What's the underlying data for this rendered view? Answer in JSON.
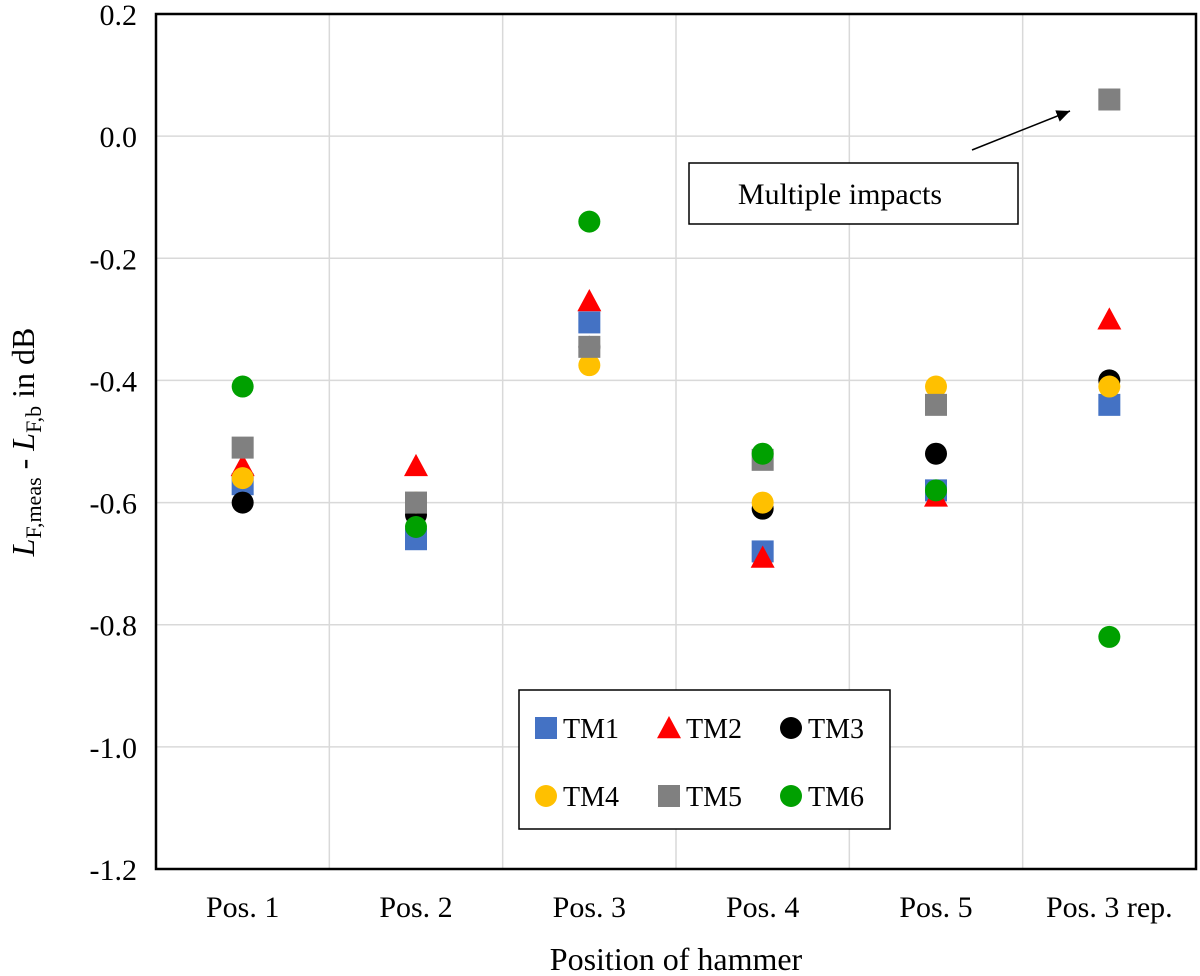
{
  "chart_data": {
    "type": "scatter",
    "title": "",
    "xlabel": "Position of hammer",
    "ylabel": {
      "L1": "L",
      "s1": "F,meas",
      "sep": " - ",
      "L2": "L",
      "s2": "F,b",
      "tail": " in dB"
    },
    "categories": [
      "Pos. 1",
      "Pos. 2",
      "Pos. 3",
      "Pos. 4",
      "Pos. 5",
      "Pos. 3 rep."
    ],
    "ylim": [
      -1.2,
      0.2
    ],
    "yticks": [
      -1.2,
      -1.0,
      -0.8,
      -0.6,
      -0.4,
      -0.2,
      0.0,
      0.2
    ],
    "ytick_labels": [
      "-1.2",
      "-1.0",
      "-0.8",
      "-0.6",
      "-0.4",
      "-0.2",
      "0.0",
      "0.2"
    ],
    "grid": true,
    "legend_position": "bottom-center",
    "series": [
      {
        "name": "TM1",
        "marker": "square",
        "color": "#4472c4",
        "values": [
          -0.57,
          -0.66,
          -0.305,
          -0.68,
          -0.58,
          -0.44
        ]
      },
      {
        "name": "TM2",
        "marker": "triangle",
        "color": "#ff0000",
        "values": [
          -0.54,
          -0.54,
          -0.27,
          -0.69,
          -0.59,
          -0.3
        ]
      },
      {
        "name": "TM3",
        "marker": "circle",
        "color": "#000000",
        "values": [
          -0.6,
          -0.62,
          -0.345,
          -0.61,
          -0.52,
          -0.4
        ]
      },
      {
        "name": "TM4",
        "marker": "circle",
        "color": "#ffc000",
        "values": [
          -0.56,
          -0.6,
          -0.375,
          -0.6,
          -0.41,
          -0.41
        ]
      },
      {
        "name": "TM5",
        "marker": "square",
        "color": "#808080",
        "values": [
          -0.51,
          -0.6,
          -0.345,
          -0.53,
          -0.44,
          0.06
        ]
      },
      {
        "name": "TM6",
        "marker": "circle",
        "color": "#00a000",
        "values": [
          -0.41,
          -0.64,
          -0.14,
          -0.52,
          -0.58,
          -0.82
        ]
      }
    ],
    "annotations": [
      {
        "text": "Multiple impacts",
        "points_to_category": "Pos. 3 rep.",
        "points_to_value": 0.06
      }
    ]
  }
}
